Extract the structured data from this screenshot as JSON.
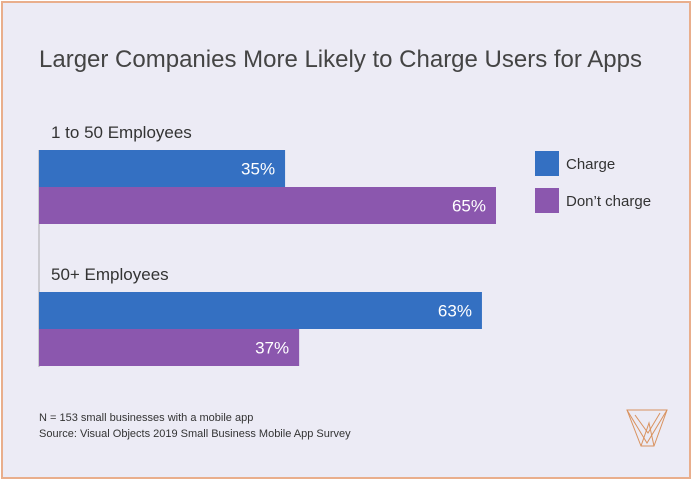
{
  "chart_data": {
    "type": "bar",
    "orientation": "horizontal",
    "title": "Larger Companies More Likely to Charge Users for Apps",
    "categories": [
      "1 to 50 Employees",
      "50+ Employees"
    ],
    "series": [
      {
        "name": "Charge",
        "values": [
          35,
          63
        ],
        "labels": [
          "35%",
          "63%"
        ],
        "color": "#3470c2"
      },
      {
        "name": "Don’t charge",
        "values": [
          65,
          37
        ],
        "labels": [
          "65%",
          "37%"
        ],
        "color": "#8b57ae"
      }
    ],
    "legend": "right",
    "grid": false,
    "xlim": [
      0,
      65
    ]
  },
  "footnote": [
    "N = 153 small businesses with a mobile app",
    "Source: Visual Objects 2019 Small Business Mobile App Survey"
  ],
  "logo": "Visual Objects V logo",
  "colors": {
    "background": "#ecebf5",
    "border": "#e9ae8c",
    "logo": "#d9925f"
  }
}
